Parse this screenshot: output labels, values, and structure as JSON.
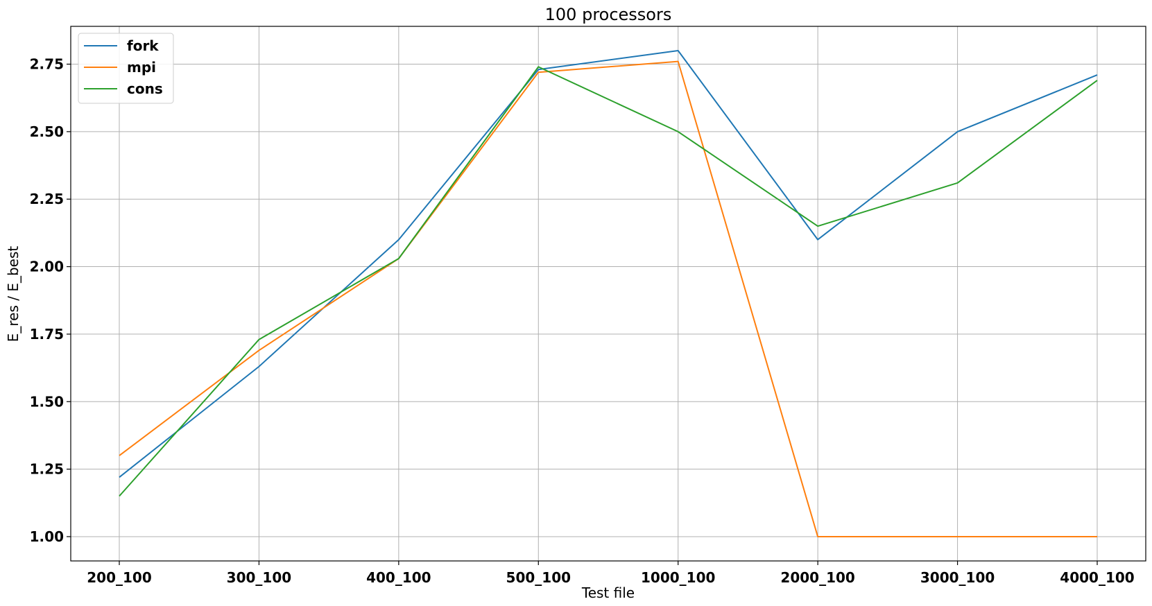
{
  "chart_data": {
    "type": "line",
    "title": "100 processors",
    "xlabel": "Test file",
    "ylabel": "E_res / E_best",
    "categories": [
      "200_100",
      "300_100",
      "400_100",
      "500_100",
      "1000_100",
      "2000_100",
      "3000_100",
      "4000_100"
    ],
    "ylim": [
      0.91,
      2.89
    ],
    "yticks": [
      "1.00",
      "1.25",
      "1.50",
      "1.75",
      "2.00",
      "2.25",
      "2.50",
      "2.75"
    ],
    "grid": true,
    "legend_position": "top-left",
    "series": [
      {
        "name": "fork",
        "color": "#1f77b4",
        "values": [
          1.22,
          1.63,
          2.1,
          2.73,
          2.8,
          2.1,
          2.5,
          2.71
        ]
      },
      {
        "name": "mpi",
        "color": "#ff7f0e",
        "values": [
          1.3,
          1.69,
          2.03,
          2.72,
          2.76,
          1.0,
          1.0,
          1.0
        ]
      },
      {
        "name": "cons",
        "color": "#2ca02c",
        "values": [
          1.15,
          1.73,
          2.03,
          2.74,
          2.5,
          2.15,
          2.31,
          2.69
        ]
      }
    ]
  }
}
